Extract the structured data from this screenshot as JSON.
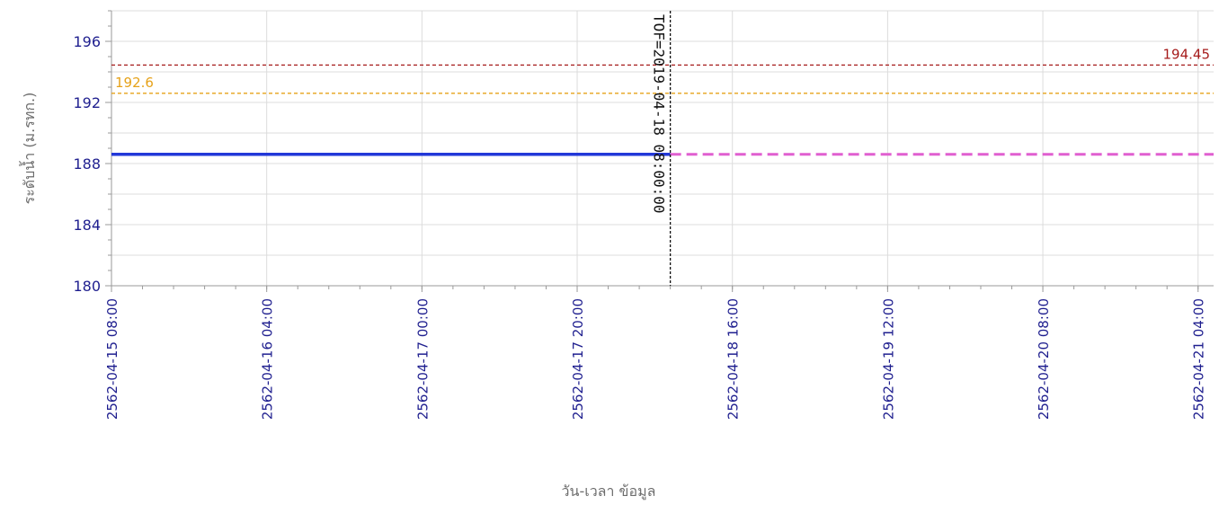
{
  "chart_data": {
    "type": "line",
    "title": "",
    "xlabel": "วัน-เวลา ข้อมูล",
    "ylabel": "ระดับน้ำ (ม.รทก.)",
    "ylim": [
      180,
      198
    ],
    "xlim": [
      "2562-04-15 08:00",
      "2562-04-21 06:00"
    ],
    "yticks": [
      180,
      184,
      188,
      192,
      196
    ],
    "xticks": [
      "2562-04-15 08:00",
      "2562-04-16 04:00",
      "2562-04-17 00:00",
      "2562-04-17 20:00",
      "2562-04-18 16:00",
      "2562-04-19 12:00",
      "2562-04-20 08:00",
      "2562-04-21 04:00"
    ],
    "grid": true,
    "series": [
      {
        "style": "solid",
        "color": "#2238d8",
        "points": [
          {
            "x": "2562-04-15 08:00",
            "y": 188.6
          },
          {
            "x": "2562-04-18 08:00",
            "y": 188.6
          }
        ]
      },
      {
        "style": "dashed",
        "color": "#e05fd0",
        "points": [
          {
            "x": "2562-04-18 08:00",
            "y": 188.6
          },
          {
            "x": "2562-04-21 06:00",
            "y": 188.6
          }
        ]
      }
    ],
    "reference_lines": [
      {
        "label": "194.45",
        "value": 194.45,
        "color": "#a61b1b",
        "label_position": "right"
      },
      {
        "label": "192.6",
        "value": 192.6,
        "color": "#e6a21a",
        "label_position": "left"
      }
    ],
    "vertical_marker": {
      "label": "TOF=2019-04-18 08:00:00",
      "x": "2562-04-18 08:00",
      "color": "#111111"
    }
  }
}
